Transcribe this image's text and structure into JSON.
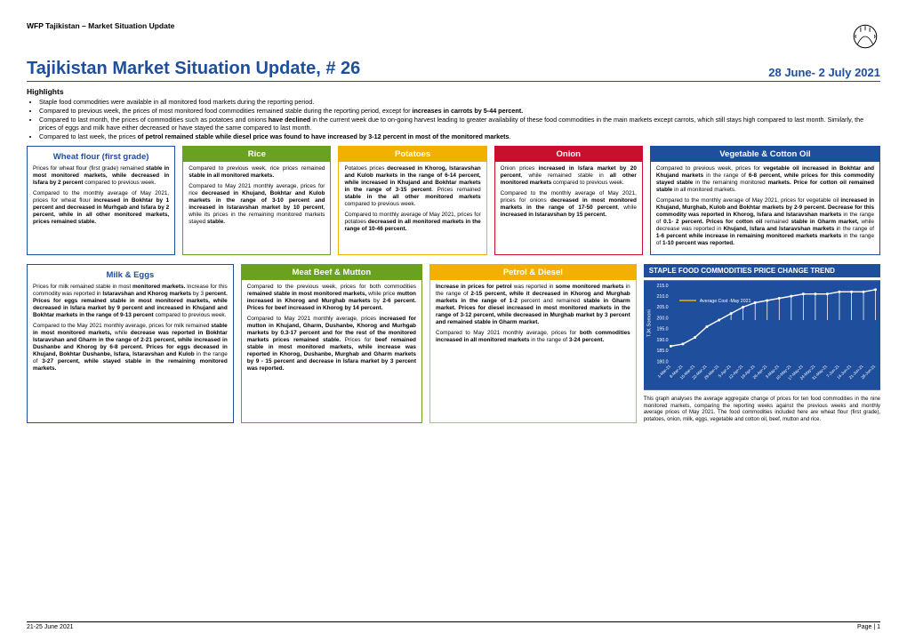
{
  "header": {
    "org_line": "WFP Tajikistan – Market Situation Update",
    "title": "Tajikistan Market Situation Update, # 26",
    "date_range": "28 June- 2 July 2021"
  },
  "highlights": {
    "head": "Highlights",
    "items": [
      "Staple food commodities were available in all monitored food markets during the reporting period.",
      "Compared to previous week, the prices of most monitored food commodities remained stable during the reporting period, except for <b>increases in carrots by 5-44 percent.</b>",
      "Compared to last month, the prices of commodities such as potatoes and onions <b>have declined</b> in the current week due to on-going harvest leading to greater availability of these food commodities in the main markets except carrots, which still stays high compared to last month. Similarly, the prices of eggs and milk have either decreased or have stayed the same compared to last month.",
      "Compared to last week, the prices <b>of petrol remained stable while diesel price was found to have increased by 3-12 percent in most of the monitored markets</b>."
    ]
  },
  "row1": [
    {
      "title": "Wheat flour (first grade)",
      "body": "<p>Prices for wheat flour (first grade) remained <b>stable in most monitored markets, while decreased in Isfara by 2 percent</b> compared to previous week.</p><p>Compared to the monthly average of May 2021, prices for wheat flour <b>increased in Bokhtar by 1 percent and decreased in Murhgab and Isfara by 2 percent, while in all other monitored markets, prices remained stable.</b></p>"
    },
    {
      "title": "Rice",
      "body": "<p>Compared to previous week, rice prices remained <b>stable in all monitored markets.</b></p><p>Compared to May 2021 monthly average, prices for rice <b>decreased in Khujand, Bokhtar and Kulob markets in the range of 3-10 percent and increased in Istaravshan market by 10 percent</b>, while its prices in the remaining monitored markets stayed <b>stable.</b></p>"
    },
    {
      "title": "Potatoes",
      "body": "<p>Potatoes prices <b>decreased in Khorog, Istaravshan and Kulob markets in the range of 6-14 percent, while increased in Khujand and Bokhtar markets in the range of 3-15 percent</b>. Prices remained <b>stable in the all other monitored markets</b> compared to previous week.</p><p>Compared to monthly average of May 2021, prices for potatoes <b>decreased in all monitored markets in the range of 10-46 percent.</b></p>"
    },
    {
      "title": "Onion",
      "body": "<p>Onion prices <b>increased in Isfara market by 20 percent</b>, while remained stable in <b>all other monitored markets</b> compared to previous week.</p><p>Compared to the monthly average of May 2021, prices for onions <b>decreased in most monitored markets in the range of 17-50 percent</b>, while <b>increased in Istaravshan by 15 percent.</b></p>"
    },
    {
      "title": "Vegetable & Cotton Oil",
      "body": "<p>Compared to previous week, prices for <b>vegetable oil increased in Bokhtar and Khujand markets</b> in the range of <b>6-8 percent, while prices for this commodity stayed stable</b> in the remaining monitored <b>markets. Price for cotton oil remained stable</b> in all monitored markets.</p><p>Compared to the monthly average of May 2021, prices for vegetable oil <b>increased in Khujand, Murghab, Kulob and Bokhtar markets by 2-9 percent. Decrease for this commodity was reported in Khorog, Isfara and Istaravshan markets</b> in the range of <b>0.1- 2 percent. Prices for cotton oil</b> remained <b>stable in Gharm market,</b> while decrease was reported in <b>Khujand, Isfara and Istaravshan markets</b> in the range of <b>1-6 percent while increase in remaining monitored markets markets</b> in the range of <b>1-10 percent was reported.</b></p>"
    }
  ],
  "row2": [
    {
      "title": "Milk & Eggs",
      "body": "<p>Prices for milk remained stable in most <b>monitored markets.</b> Increase for this commodity was reported in <b>Istaravshan and Khorog markets</b> by 3 <b>percent. Prices for eggs remained stable in most monitored markets, while decreased in Isfara market by 9 percent and increased in Khujand and Bokhtar markets in the range of 9-13 percent</b> compared to previous week.</p><p>Compared to the May 2021 monthly average, prices for milk remained <b>stable in most monitored markets,</b> while <b>decrease was reported in Bokhtar Istaravshan and Gharm in the range of 2-21 percent, while increased in Dushanbe and Khorog by 6-8 percent. Prices for eggs deceased in Khujand, Bokhtar Dushanbe, Isfara, Istaravshan and Kulob</b> in the range of <b>3-27 percent, while stayed stable in the remaining monitored markets.</b></p>"
    },
    {
      "title": "Meat Beef & Mutton",
      "body": "<p>Compared to the previous week, prices for both commodities r<b>emained stable in most monitored markets,</b> while price <b>mutton increased in Khorog and Murghab markets</b> by <b>2-6 percent. Prices for beef increased in Khorog by 14 percent.</b></p><p>Compared to May 2021 monthly average, prices <b>increased for mutton in Khujand, Gharm, Dushanbe, Khorog and Murhgab markets by 0.3-17 percent and for the rest of the monitored markets prices remained stable.</b> Prices for <b>beef remained stable in most monitored markets, while increase was reported in Khorog, Dushanbe, Murghab and Gharm markets by 9 - 15 percent and decrease in Isfara market by 3 percent was reported.</b></p>"
    },
    {
      "title": "Petrol & Diesel",
      "body": "<p><b>Increase in prices for petrol</b> was reported in <b>some monitored markets</b> in the range of <b>2-15 percent, while it decreased in Khorog and Murghab markets in the range of 1-2</b> percent and remained <b>stable in Gharm market. Prices for diesel increased in most monitored markets in the range of 3-12 percent, while decreased in Murghab market by 3 percent and remained stable in Gharm market.</b></p><p>Compared to May 2021 monthly average, prices for <b>both commodities increased in all monitored markets</b> in the range of <b>3-24 percent.</b></p>"
    }
  ],
  "chart": {
    "title": "STAPLE FOOD COMMODITIES PRICE CHANGE TREND",
    "ylabel": "TJK Somoni",
    "legend": "Average Cost -May 2021",
    "y_ticks": [
      180.0,
      185.0,
      190.0,
      195.0,
      200.0,
      205.0,
      210.0,
      215.0
    ],
    "ylim": [
      180,
      215
    ],
    "x_labels": [
      "1-Mar-21",
      "8-Mar-21",
      "15-Mar-21",
      "22-Mar-21",
      "29-Mar-21",
      "5-Apr-21",
      "12-Apr-21",
      "19-Apr-21",
      "26-Apr-21",
      "3-May-21",
      "10-May-21",
      "17-May-21",
      "24-May-21",
      "31-May-21",
      "7-Jun-21",
      "14-Jun-21",
      "21-Jun-21",
      "28-Jun-21"
    ],
    "line_values": [
      187,
      188,
      191,
      196,
      199,
      202,
      205,
      207,
      208,
      209,
      210,
      211,
      211,
      211,
      212,
      212,
      212,
      213
    ],
    "drop_baseline": 199,
    "colors": {
      "background": "#1f4e9c",
      "line": "#ffffff",
      "marker": "#ffffff",
      "text": "#ffffff",
      "legend_line": "#f2b100"
    },
    "caption": "This graph analyses the average aggregate change of prices for ten food commodities in the nine monitored markets, comparing the reporting weeks against the previous weeks and monthly average prices of May 2021. The food commodities included here are wheat flour (first grade), potatoes, onion, milk, eggs, vegetable and cotton oil, beef, mutton and rice."
  },
  "footer": {
    "date": "21-25 June 2021",
    "page": "Page | 1"
  }
}
